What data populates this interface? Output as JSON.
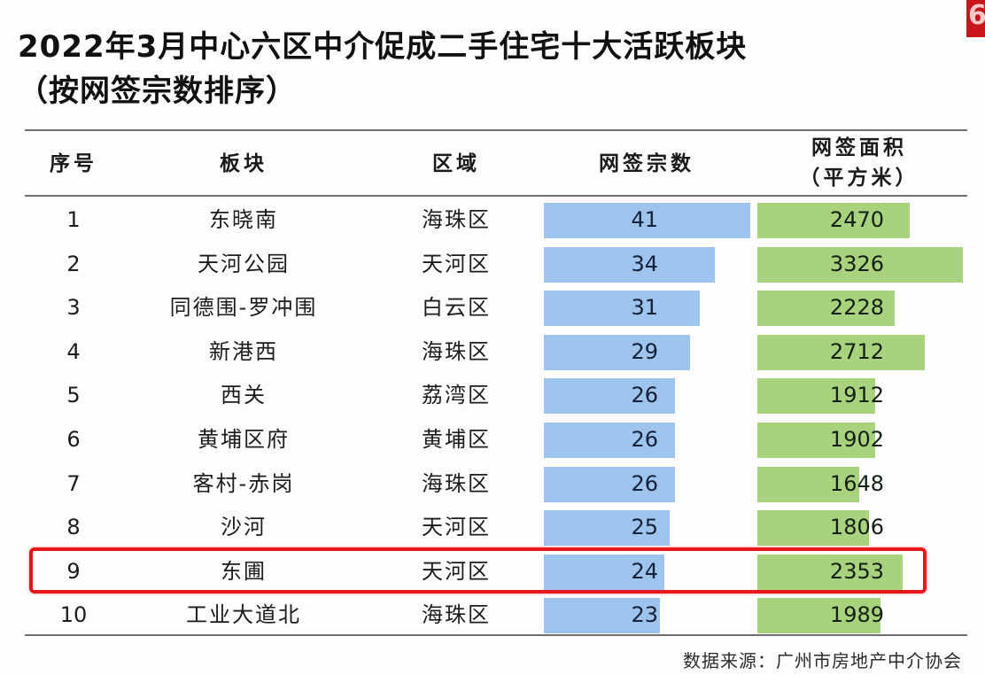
{
  "title": {
    "line1": "2022年3月中心六区中介促成二手住宅十大活跃板块",
    "line2": "（按网签宗数排序）"
  },
  "corner_badge": "6",
  "table": {
    "headers": {
      "index": "序号",
      "block": "板块",
      "area": "区域",
      "count": "网签宗数",
      "floor_area_line1": "网签面积",
      "floor_area_line2": "（平方米）"
    },
    "rows": [
      {
        "index": "1",
        "block": "东晓南",
        "area": "海珠区",
        "count": 41,
        "floor_area": 2470
      },
      {
        "index": "2",
        "block": "天河公园",
        "area": "天河区",
        "count": 34,
        "floor_area": 3326
      },
      {
        "index": "3",
        "block": "同德围-罗冲围",
        "area": "白云区",
        "count": 31,
        "floor_area": 2228
      },
      {
        "index": "4",
        "block": "新港西",
        "area": "海珠区",
        "count": 29,
        "floor_area": 2712
      },
      {
        "index": "5",
        "block": "西关",
        "area": "荔湾区",
        "count": 26,
        "floor_area": 1912
      },
      {
        "index": "6",
        "block": "黄埔区府",
        "area": "黄埔区",
        "count": 26,
        "floor_area": 1902
      },
      {
        "index": "7",
        "block": "客村-赤岗",
        "area": "海珠区",
        "count": 26,
        "floor_area": 1648
      },
      {
        "index": "8",
        "block": "沙河",
        "area": "天河区",
        "count": 25,
        "floor_area": 1806
      },
      {
        "index": "9",
        "block": "东圃",
        "area": "天河区",
        "count": 24,
        "floor_area": 2353
      },
      {
        "index": "10",
        "block": "工业大道北",
        "area": "海珠区",
        "count": 23,
        "floor_area": 1989
      }
    ],
    "highlighted_row_index": 9
  },
  "source": "数据来源：广州市房地产中介协会",
  "colors": {
    "count_bar": "#9ec3ec",
    "area_bar": "#a9d27f",
    "highlight_border": "#e3171c",
    "rule": "#6e6e6e"
  },
  "chart_data": {
    "type": "table",
    "title": "2022年3月中心六区中介促成二手住宅十大活跃板块（按网签宗数排序）",
    "columns": [
      "序号",
      "板块",
      "区域",
      "网签宗数",
      "网签面积（平方米）"
    ],
    "categories": [
      "东晓南",
      "天河公园",
      "同德围-罗冲围",
      "新港西",
      "西关",
      "黄埔区府",
      "客村-赤岗",
      "沙河",
      "东圃",
      "工业大道北"
    ],
    "districts": [
      "海珠区",
      "天河区",
      "白云区",
      "海珠区",
      "荔湾区",
      "黄埔区",
      "海珠区",
      "天河区",
      "天河区",
      "海珠区"
    ],
    "series": [
      {
        "name": "网签宗数",
        "type": "bar",
        "color": "#9ec3ec",
        "values": [
          41,
          34,
          31,
          29,
          26,
          26,
          26,
          25,
          24,
          23
        ]
      },
      {
        "name": "网签面积（平方米）",
        "type": "bar",
        "color": "#a9d27f",
        "values": [
          2470,
          3326,
          2228,
          2712,
          1912,
          1902,
          1648,
          1806,
          2353,
          1989
        ]
      }
    ],
    "highlight": {
      "category": "东圃",
      "row": 9
    },
    "source": "数据来源：广州市房地产中介协会",
    "grid": false,
    "legend": "none"
  }
}
